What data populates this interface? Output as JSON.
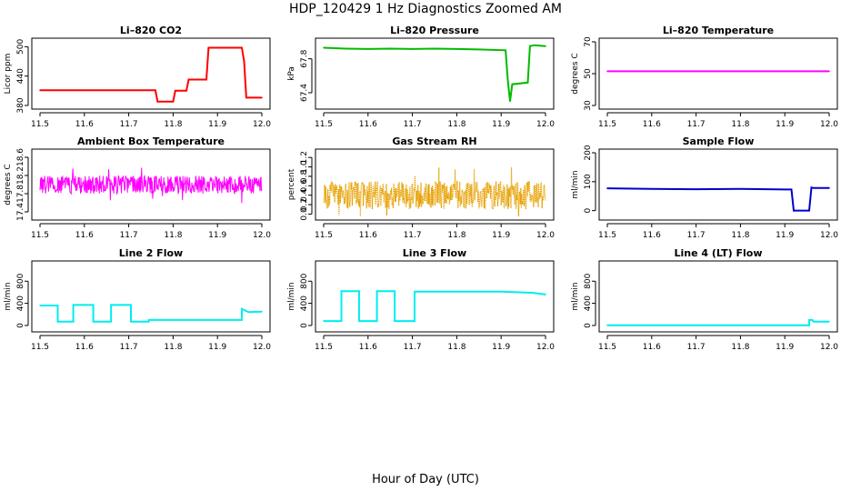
{
  "figure": {
    "title": "HDP_120429  1 Hz Diagnostics Zoomed AM",
    "xlabel": "Hour of Day (UTC)"
  },
  "chart_data": [
    {
      "type": "line",
      "title": "Li–820 CO2",
      "ylabel": "Licor ppm",
      "color": "#ff0000",
      "xlim": [
        11.5,
        12.0
      ],
      "ylim": [
        380,
        510
      ],
      "yticks": [
        "380",
        "440",
        "500"
      ],
      "xticks": [
        "11.5",
        "11.6",
        "11.7",
        "11.8",
        "11.9",
        "12.0"
      ],
      "x": [
        11.5,
        11.76,
        11.765,
        11.8,
        11.805,
        11.83,
        11.835,
        11.875,
        11.88,
        11.955,
        11.96,
        11.965,
        12.0
      ],
      "y": [
        411,
        411,
        388,
        388,
        410,
        410,
        433,
        433,
        498,
        498,
        470,
        396,
        396
      ]
    },
    {
      "type": "line",
      "title": "Li–820 Pressure",
      "ylabel": "kPa",
      "color": "#00bb00",
      "xlim": [
        11.5,
        12.0
      ],
      "ylim": [
        67.25,
        68.0
      ],
      "yticks": [
        "67.4",
        "67.8"
      ],
      "xticks": [
        "11.5",
        "11.6",
        "11.7",
        "11.8",
        "11.9",
        "12.0"
      ],
      "x": [
        11.5,
        11.55,
        11.6,
        11.65,
        11.7,
        11.75,
        11.8,
        11.85,
        11.91,
        11.915,
        11.92,
        11.925,
        11.96,
        11.965,
        11.975,
        12.0
      ],
      "y": [
        67.93,
        67.92,
        67.915,
        67.92,
        67.915,
        67.92,
        67.915,
        67.91,
        67.9,
        67.55,
        67.3,
        67.5,
        67.52,
        67.95,
        67.96,
        67.95
      ]
    },
    {
      "type": "line",
      "title": "Li–820 Temperature",
      "ylabel": "degrees C",
      "color": "#ff00ff",
      "xlim": [
        11.5,
        12.0
      ],
      "ylim": [
        30,
        70
      ],
      "yticks": [
        "30",
        "50",
        "70"
      ],
      "xticks": [
        "11.5",
        "11.6",
        "11.7",
        "11.8",
        "11.9",
        "12.0"
      ],
      "x": [
        11.5,
        12.0
      ],
      "y": [
        51.5,
        51.5
      ]
    },
    {
      "type": "line",
      "title": "Ambient Box Temperature",
      "ylabel": "degrees C",
      "color": "#ff00ff",
      "xlim": [
        11.5,
        12.0
      ],
      "ylim": [
        17.3,
        18.7
      ],
      "yticks": [
        "17.4",
        "17.8",
        "18.2",
        "18.6"
      ],
      "xticks": [
        "11.5",
        "11.6",
        "11.7",
        "11.8",
        "11.9",
        "12.0"
      ],
      "noise": {
        "center": 18.0,
        "amplitude": 0.2,
        "spike": 0.45
      },
      "x": [
        11.5,
        12.0
      ],
      "y": [
        18.0,
        18.0
      ]
    },
    {
      "type": "scatter",
      "title": "Gas Stream RH",
      "ylabel": "percent",
      "color": "#e6a000",
      "xlim": [
        11.5,
        12.0
      ],
      "ylim": [
        -0.05,
        1.3
      ],
      "yticks": [
        "0.0",
        "0.2",
        "0.4",
        "0.6",
        "0.8",
        "1.0",
        "1.2"
      ],
      "xticks": [
        "11.5",
        "11.6",
        "11.7",
        "11.8",
        "11.9",
        "12.0"
      ],
      "noise": {
        "center": 0.4,
        "amplitude": 0.3,
        "spike": 0.6
      },
      "x": [
        11.5,
        12.0
      ],
      "y": [
        0.4,
        0.4
      ]
    },
    {
      "type": "line",
      "title": "Sample Flow",
      "ylabel": "ml/min",
      "color": "#0000cc",
      "xlim": [
        11.5,
        12.0
      ],
      "ylim": [
        -20,
        200
      ],
      "yticks": [
        "0",
        "100",
        "200"
      ],
      "xticks": [
        "11.5",
        "11.6",
        "11.7",
        "11.8",
        "11.9",
        "12.0"
      ],
      "x": [
        11.5,
        11.6,
        11.7,
        11.8,
        11.9,
        11.915,
        11.92,
        11.955,
        11.96,
        11.965,
        12.0
      ],
      "y": [
        77,
        75,
        74,
        75,
        73,
        73,
        0,
        0,
        80,
        78,
        78
      ]
    },
    {
      "type": "line",
      "title": "Line 2 Flow",
      "ylabel": "ml/min",
      "color": "#00eeee",
      "xlim": [
        11.5,
        12.0
      ],
      "ylim": [
        -50,
        1100
      ],
      "yticks": [
        "0",
        "400",
        "800"
      ],
      "xticks": [
        "11.5",
        "11.6",
        "11.7",
        "11.8",
        "11.9",
        "12.0"
      ],
      "x": [
        11.5,
        11.54,
        11.54,
        11.575,
        11.575,
        11.62,
        11.62,
        11.66,
        11.66,
        11.705,
        11.705,
        11.745,
        11.745,
        11.955,
        11.955,
        11.97,
        12.0
      ],
      "y": [
        360,
        360,
        70,
        70,
        370,
        370,
        70,
        70,
        370,
        370,
        70,
        70,
        100,
        100,
        300,
        240,
        250
      ]
    },
    {
      "type": "line",
      "title": "Line 3 Flow",
      "ylabel": "ml/min",
      "color": "#00eeee",
      "xlim": [
        11.5,
        12.0
      ],
      "ylim": [
        -50,
        1100
      ],
      "yticks": [
        "0",
        "400",
        "800"
      ],
      "xticks": [
        "11.5",
        "11.6",
        "11.7",
        "11.8",
        "11.9",
        "12.0"
      ],
      "x": [
        11.5,
        11.54,
        11.54,
        11.58,
        11.58,
        11.62,
        11.62,
        11.66,
        11.66,
        11.705,
        11.705,
        11.8,
        11.9,
        11.97,
        12.0
      ],
      "y": [
        80,
        80,
        620,
        620,
        80,
        80,
        620,
        620,
        80,
        80,
        610,
        610,
        610,
        590,
        560
      ]
    },
    {
      "type": "line",
      "title": "Line 4 (LT) Flow",
      "ylabel": "ml/min",
      "color": "#00eeee",
      "xlim": [
        11.5,
        12.0
      ],
      "ylim": [
        -50,
        1100
      ],
      "yticks": [
        "0",
        "400",
        "800"
      ],
      "xticks": [
        "11.5",
        "11.6",
        "11.7",
        "11.8",
        "11.9",
        "12.0"
      ],
      "x": [
        11.5,
        11.955,
        11.955,
        11.962,
        11.965,
        12.0
      ],
      "y": [
        5,
        5,
        100,
        100,
        70,
        70
      ]
    }
  ]
}
